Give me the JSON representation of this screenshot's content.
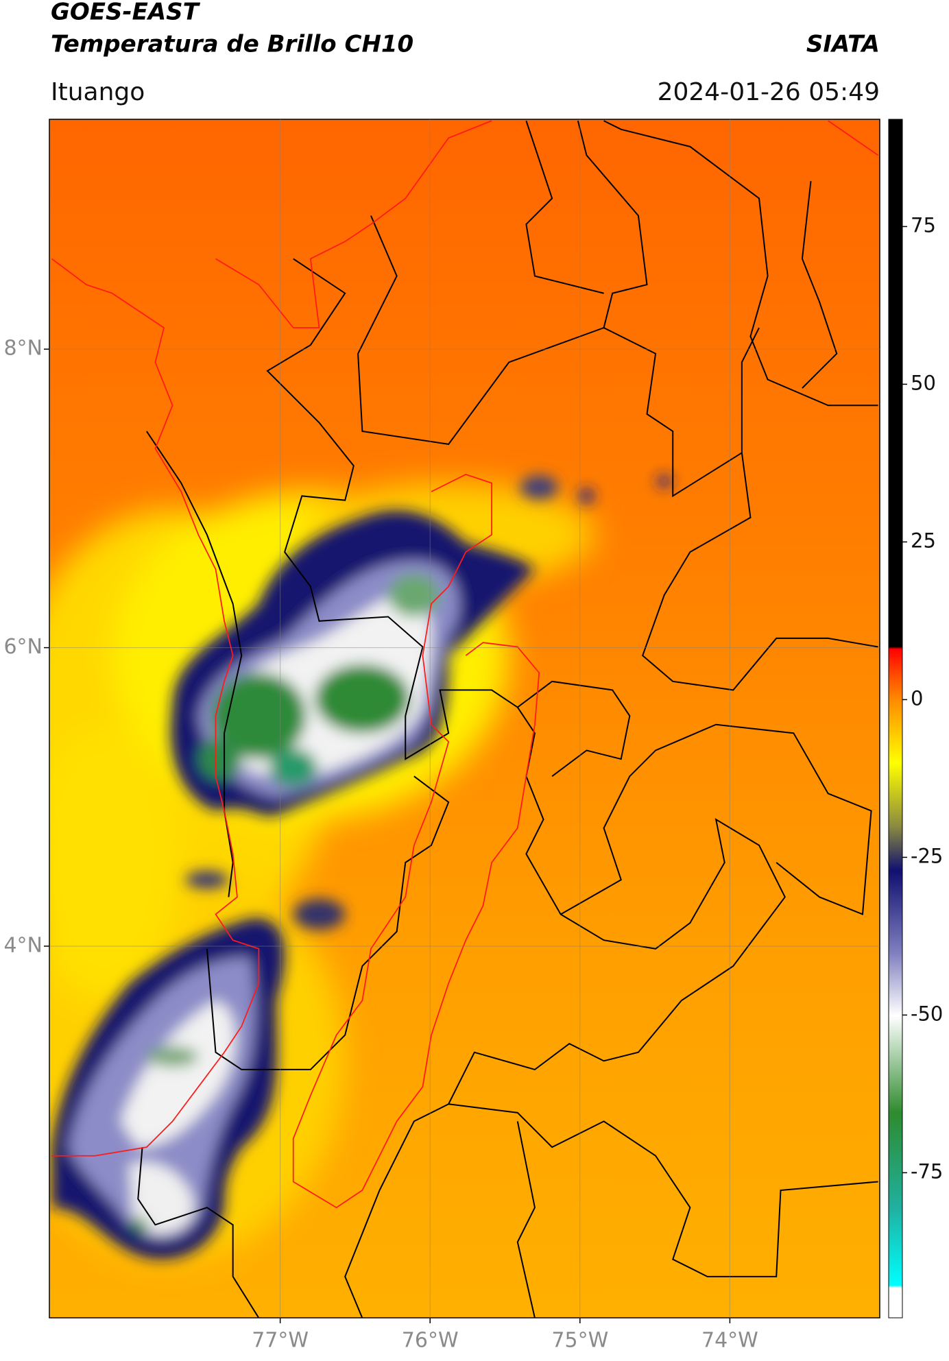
{
  "title": "GOES-EAST",
  "subtitle": "Temperatura de Brillo CH10",
  "source": "SIATA",
  "location": "Ituango",
  "timestamp": "2024-01-26 05:49",
  "map": {
    "xlim": [
      -78.54,
      -73.0
    ],
    "ylim": [
      1.51,
      9.54
    ],
    "xticks": [
      {
        "value": -77,
        "label": "77°W"
      },
      {
        "value": -76,
        "label": "76°W"
      },
      {
        "value": -75,
        "label": "75°W"
      },
      {
        "value": -74,
        "label": "74°W"
      }
    ],
    "yticks": [
      {
        "value": 8,
        "label": "8°N"
      },
      {
        "value": 6,
        "label": "6°N"
      },
      {
        "value": 4,
        "label": "4°N"
      }
    ],
    "grid": true
  },
  "colorbar": {
    "lim": [
      -98,
      92
    ],
    "ticks": [
      -75,
      -50,
      -25,
      0,
      25,
      50,
      75
    ]
  }
}
